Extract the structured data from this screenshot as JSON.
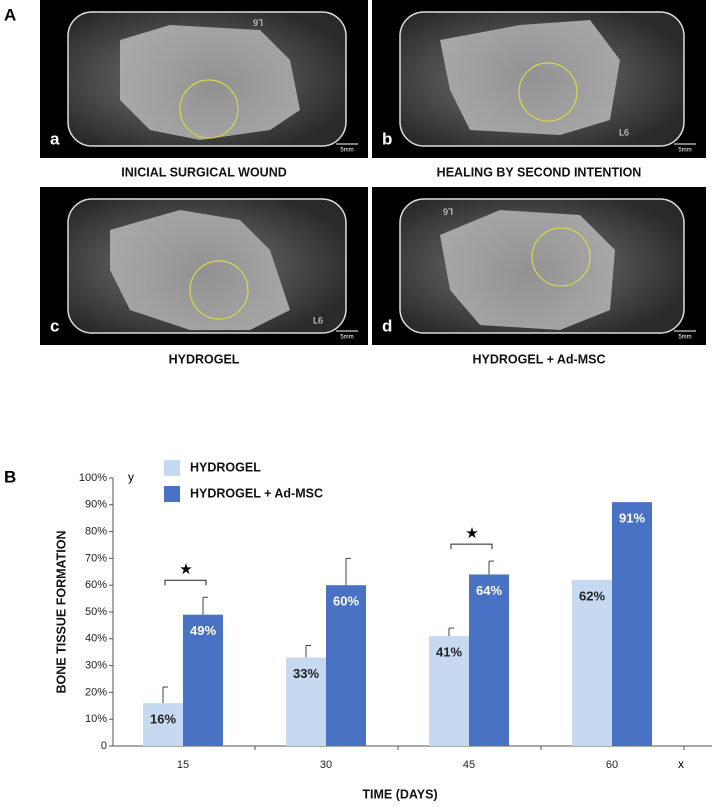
{
  "panel_labels": [
    "A",
    "B"
  ],
  "panels": [
    {
      "letter": "a",
      "caption": "INICIAL SURGICAL WOUND",
      "marker": "L6",
      "scale": "5mm"
    },
    {
      "letter": "b",
      "caption": "HEALING BY SECOND INTENTION",
      "marker": "L6",
      "scale": "5mm"
    },
    {
      "letter": "c",
      "caption": "HYDROGEL",
      "marker": "L6",
      "scale": "5mm"
    },
    {
      "letter": "d",
      "caption": "HYDROGEL + Ad-MSC",
      "marker": "L6",
      "scale": "5mm"
    }
  ],
  "chart_data": {
    "type": "bar",
    "x_label": "TIME (DAYS)",
    "y_label": "BONE TISSUE FORMATION",
    "x_axis_name": "x",
    "y_axis_name": "y",
    "categories": [
      "15",
      "30",
      "45",
      "60"
    ],
    "series": [
      {
        "name": "HYDROGEL",
        "color": "#c6d9f1",
        "values": [
          16,
          33,
          41,
          62
        ],
        "value_labels": [
          "16%",
          "33%",
          "41%",
          "62%"
        ],
        "errors": [
          6,
          4.5,
          3,
          null
        ]
      },
      {
        "name": "HYDROGEL + Ad-MSC",
        "color": "#4a72c4",
        "values": [
          49,
          60,
          64,
          91
        ],
        "value_labels": [
          "49%",
          "60%",
          "64%",
          "91%"
        ],
        "errors": [
          6.5,
          10,
          5,
          null
        ]
      }
    ],
    "significance": [
      {
        "category": "15",
        "label": "★"
      },
      {
        "category": "45",
        "label": "★"
      }
    ],
    "ylim": [
      0,
      100
    ],
    "yticks": [
      0,
      {
        "value": 10,
        "label": "10%"
      },
      {
        "value": 20,
        "label": "20%"
      },
      {
        "value": 30,
        "label": "30%"
      },
      {
        "value": 40,
        "label": "40%"
      },
      {
        "value": 50,
        "label": "50%"
      },
      {
        "value": 60,
        "label": "60%"
      },
      {
        "value": 70,
        "label": "70%"
      },
      {
        "value": 80,
        "label": "80%"
      },
      {
        "value": 90,
        "label": "90%"
      },
      {
        "value": 100,
        "label": "100%"
      }
    ],
    "legend": "top-left"
  }
}
